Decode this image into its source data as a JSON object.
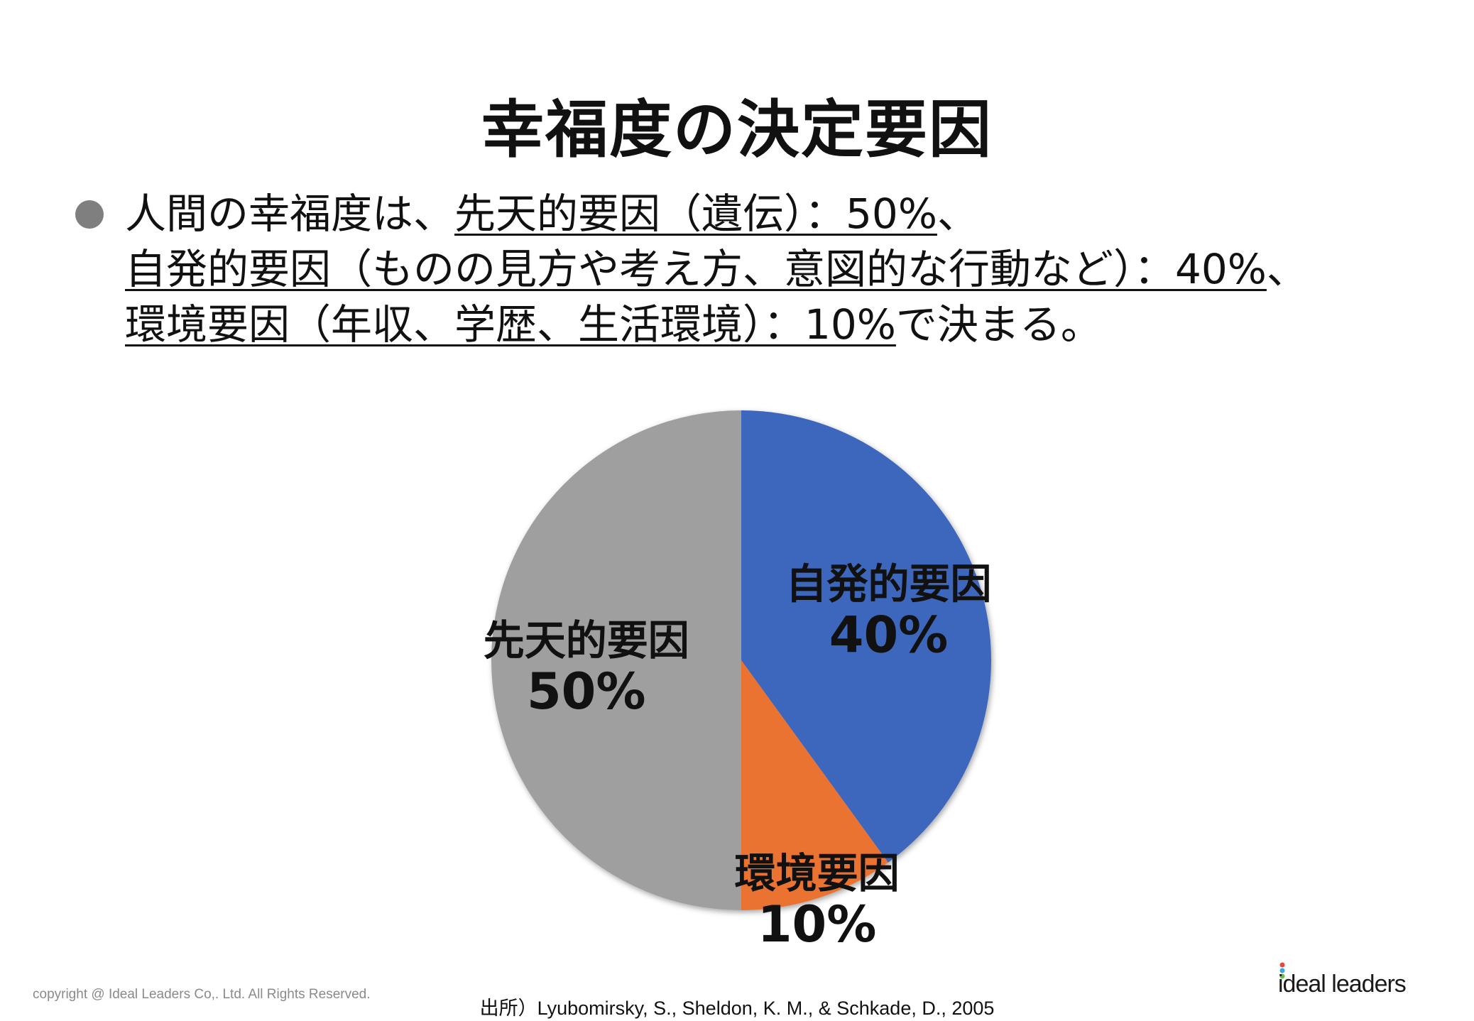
{
  "title": "幸福度の決定要因",
  "body": {
    "l1_prefix": "人間の幸福度は、",
    "l1_under": "先天的要因（遺伝）：50%",
    "l1_suffix": "、",
    "l2_under": "自発的要因（ものの見方や考え方、意図的な行動など）：40%",
    "l2_suffix": "、",
    "l3_under": "環境要因（年収、学歴、生活環境）：10%",
    "l3_suffix": "で決まる。"
  },
  "chart_data": {
    "type": "pie",
    "start_angle_deg": 0,
    "direction": "clockwise",
    "slices": [
      {
        "label": "自発的要因",
        "value_label": "40%",
        "value": 40,
        "color": "#3e66bd"
      },
      {
        "label": "環境要因",
        "value_label": "10%",
        "value": 10,
        "color": "#ea7331"
      },
      {
        "label": "先天的要因",
        "value_label": "50%",
        "value": 50,
        "color": "#9f9f9f"
      }
    ]
  },
  "footer": {
    "copyright": "copyright @ Ideal Leaders Co,. Ltd. All Rights Reserved.",
    "source": "出所）Lyubomirsky, S., Sheldon, K. M., & Schkade, D., 2005",
    "logo_text": "ideal leaders",
    "logo_colors": [
      "#e8473c",
      "#3aa8d8",
      "#6cc04a"
    ]
  }
}
